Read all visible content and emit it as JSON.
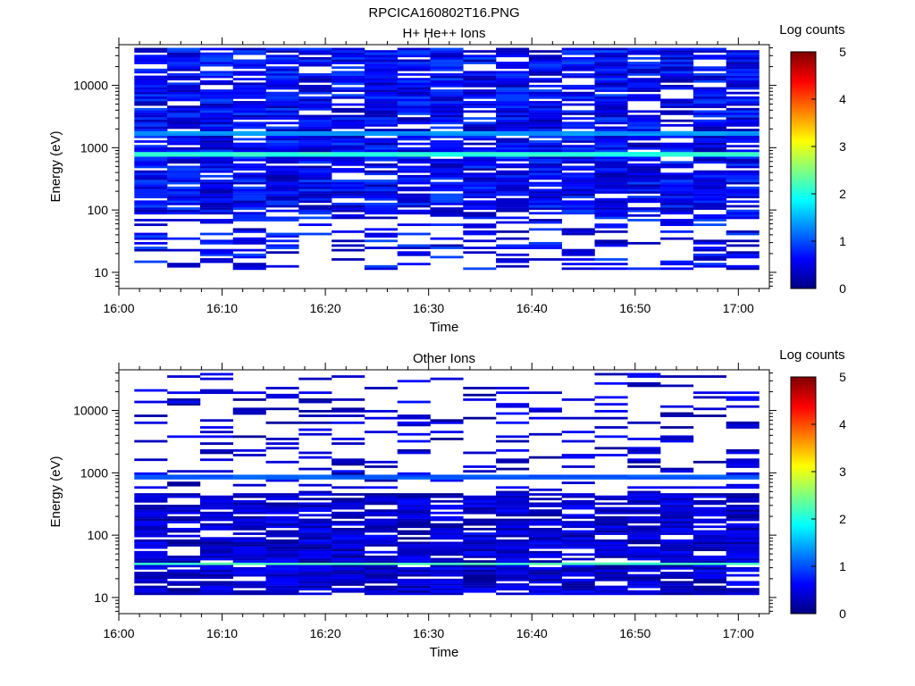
{
  "figure": {
    "title": "RPCICA160802T16.PNG"
  },
  "chart_data": [
    {
      "type": "heatmap",
      "title": "H+ He++ Ions",
      "xlabel": "Time",
      "ylabel": "Energy (eV)",
      "x_ticks": [
        "16:00",
        "16:10",
        "16:20",
        "16:30",
        "16:40",
        "16:50",
        "17:00"
      ],
      "x_range": [
        "16:00",
        "17:03"
      ],
      "y_scale": "log",
      "y_ticks": [
        "10",
        "100",
        "1000",
        "10000"
      ],
      "y_range": [
        5.5,
        45000
      ],
      "bins_time_range": [
        "16:01.5",
        "17:02"
      ],
      "time_bins": 19,
      "energy_bins": 96,
      "energy_bin_range_ev": [
        11,
        40000
      ],
      "colorbar": {
        "label": "Log counts",
        "ticks": [
          "0",
          "1",
          "2",
          "3",
          "4",
          "5"
        ],
        "range": [
          0,
          5
        ]
      },
      "features": [
        {
          "energy_ev": 800,
          "log_counts": 2.1,
          "note": "bright band"
        },
        {
          "energy_ev": 1700,
          "log_counts": 1.4,
          "note": "secondary band"
        }
      ],
      "background_log_counts": [
        0.2,
        1.0
      ],
      "low_energy_cutoff_ev": 11
    },
    {
      "type": "heatmap",
      "title": "Other Ions",
      "xlabel": "Time",
      "ylabel": "Energy (eV)",
      "x_ticks": [
        "16:00",
        "16:10",
        "16:20",
        "16:30",
        "16:40",
        "16:50",
        "17:00"
      ],
      "x_range": [
        "16:00",
        "17:03"
      ],
      "y_scale": "log",
      "y_ticks": [
        "10",
        "100",
        "1000",
        "10000"
      ],
      "y_range": [
        5.5,
        45000
      ],
      "bins_time_range": [
        "16:01.5",
        "17:02"
      ],
      "time_bins": 19,
      "energy_bins": 96,
      "energy_bin_range_ev": [
        11,
        40000
      ],
      "colorbar": {
        "label": "Log counts",
        "ticks": [
          "0",
          "1",
          "2",
          "3",
          "4",
          "5"
        ],
        "range": [
          0,
          5
        ]
      },
      "features": [
        {
          "energy_ev": 35,
          "log_counts": 2.2,
          "note": "bright band"
        },
        {
          "energy_ev": 850,
          "log_counts": 1.1,
          "note": "thin band"
        }
      ],
      "background_log_counts": [
        0.1,
        0.7
      ]
    }
  ]
}
